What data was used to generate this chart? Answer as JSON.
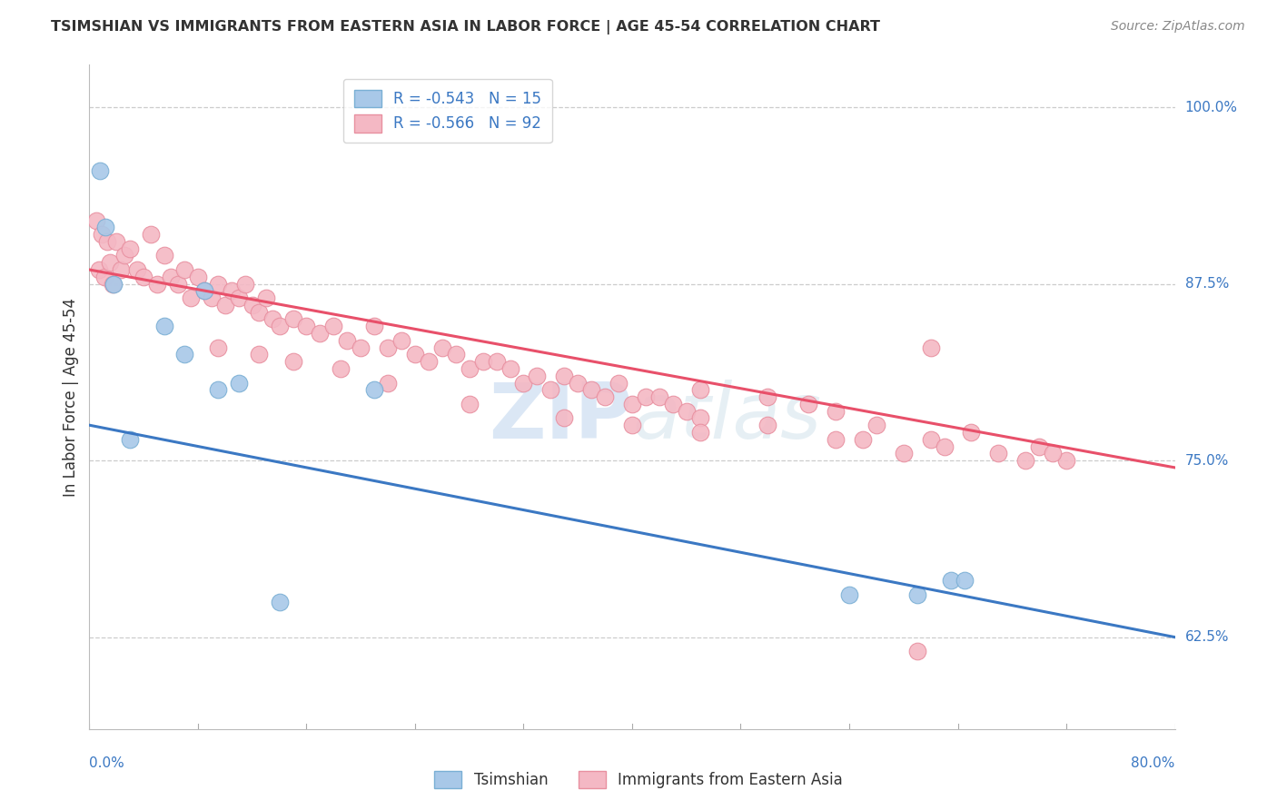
{
  "title": "TSIMSHIAN VS IMMIGRANTS FROM EASTERN ASIA IN LABOR FORCE | AGE 45-54 CORRELATION CHART",
  "source_text": "Source: ZipAtlas.com",
  "ylabel": "In Labor Force | Age 45-54",
  "ylabel_ticks": [
    62.5,
    75.0,
    87.5,
    100.0
  ],
  "ylabel_tick_labels": [
    "62.5%",
    "75.0%",
    "87.5%",
    "100.0%"
  ],
  "xmin": 0.0,
  "xmax": 80.0,
  "ymin": 56.0,
  "ymax": 103.0,
  "watermark_top": "ZIP",
  "watermark_bot": "atlas",
  "series": [
    {
      "name": "Tsimshian",
      "R": -0.543,
      "N": 15,
      "scatter_color": "#a8c8e8",
      "scatter_edge": "#7aafd4",
      "line_color": "#3b78c3",
      "trend_x0": 0.0,
      "trend_y0": 77.5,
      "trend_x1": 80.0,
      "trend_y1": 62.5,
      "points_x": [
        0.8,
        1.2,
        1.8,
        3.0,
        5.5,
        7.0,
        8.5,
        9.5,
        11.0,
        14.0,
        21.0,
        56.0,
        61.0,
        63.5,
        64.5
      ],
      "points_y": [
        95.5,
        91.5,
        87.5,
        76.5,
        84.5,
        82.5,
        87.0,
        80.0,
        80.5,
        65.0,
        80.0,
        65.5,
        65.5,
        66.5,
        66.5
      ]
    },
    {
      "name": "Immigrants from Eastern Asia",
      "R": -0.566,
      "N": 92,
      "scatter_color": "#f4b8c4",
      "scatter_edge": "#e890a0",
      "line_color": "#e8506a",
      "trend_x0": 0.0,
      "trend_y0": 88.5,
      "trend_x1": 80.0,
      "trend_y1": 74.5,
      "points_x": [
        0.5,
        0.7,
        0.9,
        1.1,
        1.3,
        1.5,
        1.7,
        2.0,
        2.3,
        2.6,
        3.0,
        3.5,
        4.0,
        4.5,
        5.0,
        5.5,
        6.0,
        6.5,
        7.0,
        7.5,
        8.0,
        8.5,
        9.0,
        9.5,
        10.0,
        10.5,
        11.0,
        11.5,
        12.0,
        12.5,
        13.0,
        13.5,
        14.0,
        15.0,
        16.0,
        17.0,
        18.0,
        19.0,
        20.0,
        21.0,
        22.0,
        23.0,
        24.0,
        25.0,
        26.0,
        27.0,
        28.0,
        29.0,
        30.0,
        31.0,
        32.0,
        33.0,
        34.0,
        35.0,
        36.0,
        37.0,
        38.0,
        39.0,
        40.0,
        41.0,
        42.0,
        43.0,
        44.0,
        45.0,
        9.5,
        12.5,
        15.0,
        18.5,
        22.0,
        28.0,
        35.0,
        40.0,
        45.0,
        50.0,
        55.0,
        58.0,
        62.0,
        65.0,
        70.0,
        72.0,
        45.0,
        50.0,
        53.0,
        55.0,
        57.0,
        60.0,
        63.0,
        67.0,
        69.0,
        71.0,
        61.0,
        62.0
      ],
      "points_y": [
        92.0,
        88.5,
        91.0,
        88.0,
        90.5,
        89.0,
        87.5,
        90.5,
        88.5,
        89.5,
        90.0,
        88.5,
        88.0,
        91.0,
        87.5,
        89.5,
        88.0,
        87.5,
        88.5,
        86.5,
        88.0,
        87.0,
        86.5,
        87.5,
        86.0,
        87.0,
        86.5,
        87.5,
        86.0,
        85.5,
        86.5,
        85.0,
        84.5,
        85.0,
        84.5,
        84.0,
        84.5,
        83.5,
        83.0,
        84.5,
        83.0,
        83.5,
        82.5,
        82.0,
        83.0,
        82.5,
        81.5,
        82.0,
        82.0,
        81.5,
        80.5,
        81.0,
        80.0,
        81.0,
        80.5,
        80.0,
        79.5,
        80.5,
        79.0,
        79.5,
        79.5,
        79.0,
        78.5,
        78.0,
        83.0,
        82.5,
        82.0,
        81.5,
        80.5,
        79.0,
        78.0,
        77.5,
        77.0,
        77.5,
        76.5,
        77.5,
        76.5,
        77.0,
        76.0,
        75.0,
        80.0,
        79.5,
        79.0,
        78.5,
        76.5,
        75.5,
        76.0,
        75.5,
        75.0,
        75.5,
        61.5,
        83.0
      ]
    }
  ],
  "background_color": "#ffffff",
  "grid_color": "#cccccc",
  "title_color": "#333333",
  "source_color": "#888888",
  "tick_label_color": "#3b78c3",
  "legend_label_color": "#3b78c3",
  "bottom_label_color": "#333333"
}
